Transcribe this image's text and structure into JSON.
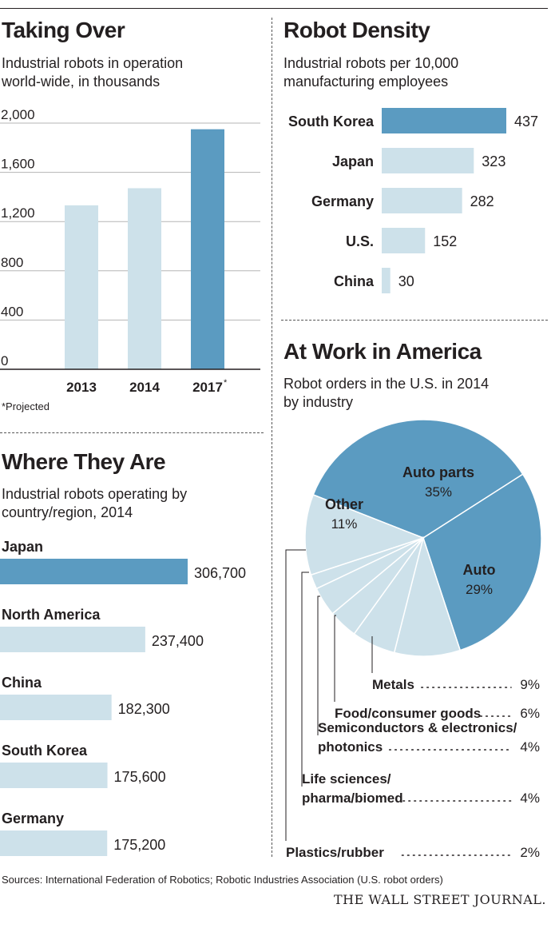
{
  "chart_data": [
    {
      "type": "bar",
      "title": "Taking Over",
      "subtitle_lines": [
        "Industrial robots in operation",
        "world-wide, in thousands"
      ],
      "categories": [
        "2013",
        "2014",
        "2017"
      ],
      "values": [
        1332,
        1471,
        1950
      ],
      "highlight_index": 2,
      "category_marks": [
        "",
        "",
        "*"
      ],
      "yticks": [
        "2,000",
        "1,600",
        "1,200",
        "800",
        "400",
        "0"
      ],
      "ytick_values": [
        2000,
        1600,
        1200,
        800,
        400,
        0
      ],
      "ylim": [
        0,
        2000
      ],
      "footnote": "*Projected",
      "grid": true
    },
    {
      "type": "bar",
      "orientation": "horizontal",
      "title": "Robot Density",
      "subtitle_lines": [
        "Industrial robots per 10,000",
        "manufacturing employees"
      ],
      "categories": [
        "South Korea",
        "Japan",
        "Germany",
        "U.S.",
        "China"
      ],
      "values": [
        437,
        323,
        282,
        152,
        30
      ],
      "value_labels": [
        "437",
        "323",
        "282",
        "152",
        "30"
      ],
      "highlight_index": 0
    },
    {
      "type": "bar",
      "orientation": "horizontal",
      "title": "Where They Are",
      "subtitle_lines": [
        "Industrial robots operating by",
        "country/region, 2014"
      ],
      "categories": [
        "Japan",
        "North America",
        "China",
        "South Korea",
        "Germany"
      ],
      "values": [
        306700,
        237400,
        182300,
        175600,
        175200
      ],
      "value_labels": [
        "306,700",
        "237,400",
        "182,300",
        "175,600",
        "175,200"
      ],
      "highlight_index": 0
    },
    {
      "type": "pie",
      "title": "At Work in America",
      "subtitle_lines": [
        "Robot orders in the U.S. in 2014",
        "by industry"
      ],
      "slices": [
        {
          "label": "Auto parts",
          "value": 35,
          "pct": "35%",
          "dark": true
        },
        {
          "label": "Auto",
          "value": 29,
          "pct": "29%",
          "dark": true
        },
        {
          "label": "Metals",
          "value": 9,
          "pct": "9%",
          "dark": false
        },
        {
          "label": "Food/consumer goods",
          "value": 6,
          "pct": "6%",
          "dark": false
        },
        {
          "label": "Semiconductors & electronics/ photonics",
          "value": 4,
          "pct": "4%",
          "dark": false
        },
        {
          "label": "Life sciences/ pharma/biomed",
          "value": 4,
          "pct": "4%",
          "dark": false
        },
        {
          "label": "Plastics/rubber",
          "value": 2,
          "pct": "2%",
          "dark": false
        },
        {
          "label": "Other",
          "value": 11,
          "pct": "11%",
          "dark": false
        }
      ],
      "callouts": [
        {
          "lines": [
            "Metals"
          ],
          "pct": "9%"
        },
        {
          "lines": [
            "Food/consumer goods"
          ],
          "pct": "6%"
        },
        {
          "lines": [
            "Semiconductors & electronics/",
            "photonics"
          ],
          "pct": "4%"
        },
        {
          "lines": [
            "Life sciences/",
            "pharma/biomed"
          ],
          "pct": "4%"
        },
        {
          "lines": [
            "Plastics/rubber"
          ],
          "pct": "2%"
        }
      ]
    }
  ],
  "colors": {
    "dark": "#5b9bc1",
    "light": "#cde1ea",
    "text": "#231f20"
  },
  "footer": {
    "sources": "Sources: International Federation of Robotics; Robotic Industries Association (U.S. robot orders)",
    "publisher": "THE WALL STREET JOURNAL."
  }
}
